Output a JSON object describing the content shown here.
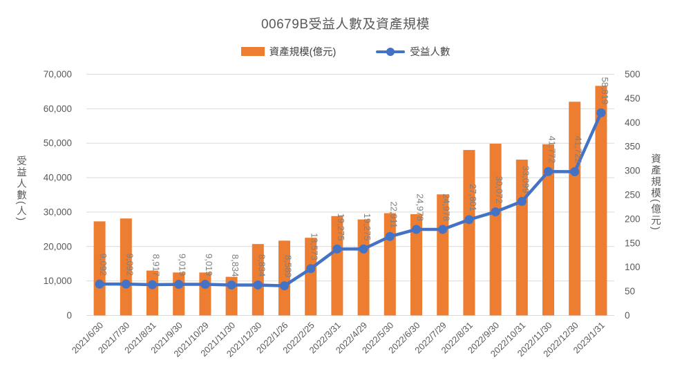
{
  "chart": {
    "title": "00679B受益人數及資產規模",
    "legend": {
      "bar": "資產規模(億元)",
      "line": "受益人數"
    },
    "left_axis": {
      "title": "受益人數(人)",
      "min": 0,
      "max": 70000,
      "step": 10000
    },
    "right_axis": {
      "title": "資產規模(億元)",
      "min": 0,
      "max": 500,
      "step": 50
    },
    "colors": {
      "bar": "#ED7D31",
      "line": "#4472C4",
      "grid": "#D9D9D9",
      "tick_text": "#595959",
      "data_label_text": "#7F7F7F",
      "title_text": "#595959",
      "legend_text": "#404040"
    }
  },
  "chart_data": {
    "type": "combo",
    "title": "00679B受益人數及資產規模",
    "grid": true,
    "legend_position": "top",
    "categories": [
      "2021/6/30",
      "2021/7/30",
      "2021/8/31",
      "2021/9/30",
      "2021/10/29",
      "2021/11/30",
      "2021/12/30",
      "2022/1/26",
      "2022/2/25",
      "2022/3/31",
      "2022/4/29",
      "2022/5/30",
      "2022/6/30",
      "2022/7/29",
      "2022/8/31",
      "2022/9/30",
      "2022/10/31",
      "2022/11/30",
      "2022/12/30",
      "2023/1/31"
    ],
    "series": [
      {
        "name": "資產規模(億元)",
        "type": "bar",
        "axis": "right",
        "color": "#ED7D31",
        "values": [
          195,
          201,
          93,
          89,
          89,
          80,
          148,
          155,
          161,
          206,
          199,
          212,
          210,
          251,
          343,
          356,
          323,
          355,
          443,
          476
        ]
      },
      {
        "name": "受益人數",
        "type": "line",
        "axis": "left",
        "color": "#4472C4",
        "values": [
          9092,
          9092,
          8917,
          9019,
          9019,
          8834,
          8834,
          8589,
          13573,
          19275,
          19275,
          22911,
          24978,
          24978,
          27801,
          30072,
          33099,
          41772,
          41722,
          58819
        ],
        "labels": [
          "9,092",
          "9,092",
          "8,917",
          "9,019",
          "9,019",
          "8,834",
          "8,834",
          "8,589",
          "13,573",
          "19,275",
          "19,275",
          "22,911",
          "24,978",
          "24,978",
          "27,801",
          "30,072",
          "33,099",
          "41,772",
          "41,722",
          "58,819"
        ]
      }
    ],
    "left_ylim": [
      0,
      70000
    ],
    "right_ylim": [
      0,
      500
    ]
  }
}
